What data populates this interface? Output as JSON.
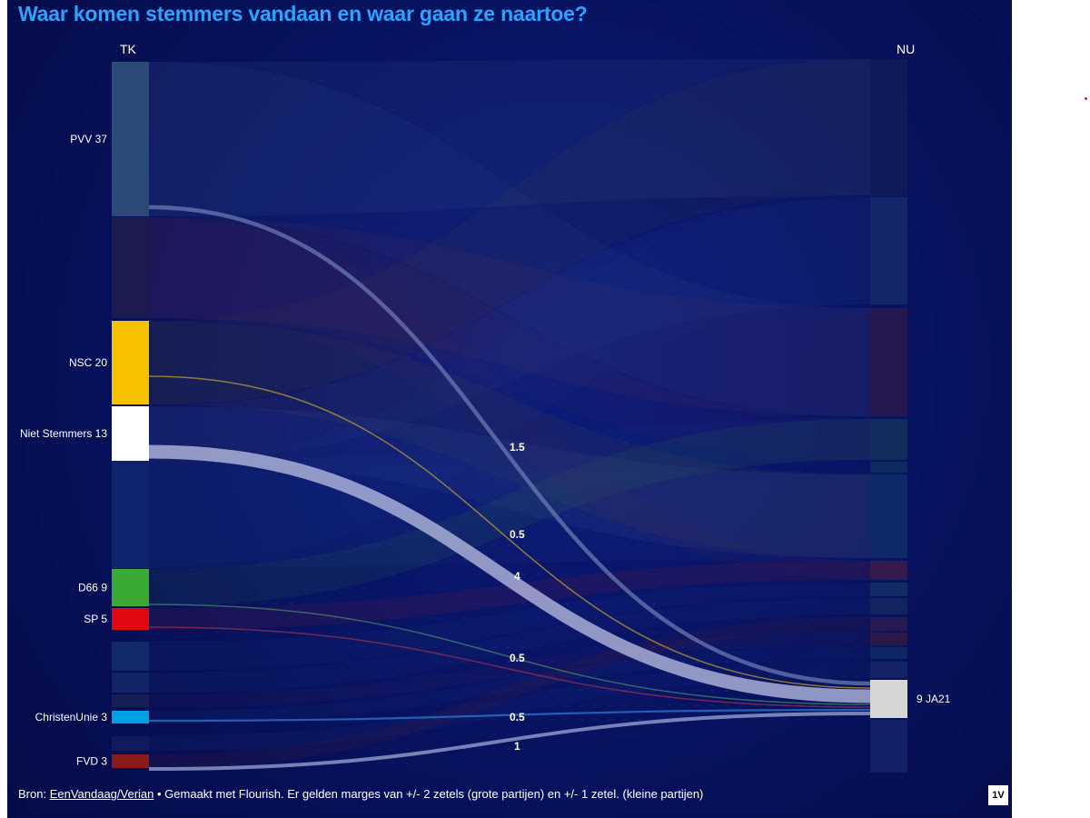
{
  "title": "Waar komen stemmers vandaan en waar gaan ze naartoe?",
  "chart_data": {
    "type": "sankey",
    "title": "Waar komen stemmers vandaan en waar gaan ze naartoe?",
    "left_header": "TK",
    "right_header": "NU",
    "sources": [
      {
        "label": "PVV 37",
        "color": "#2c4a78"
      },
      {
        "label": "",
        "color": "#1e1d4e"
      },
      {
        "label": "NSC 20",
        "color": "#f7c100"
      },
      {
        "label": "Niet Stemmers 13",
        "color": "#ffffff"
      },
      {
        "label": "",
        "color": "#10266e"
      },
      {
        "label": "D66 9",
        "color": "#3aaa35"
      },
      {
        "label": "SP 5",
        "color": "#e30613"
      },
      {
        "label": "",
        "color": "#132c6e"
      },
      {
        "label": "",
        "color": "#11286a"
      },
      {
        "label": "",
        "color": "#1a1f55"
      },
      {
        "label": "ChristenUnie 3",
        "color": "#00a0e6"
      },
      {
        "label": "",
        "color": "#101d5e"
      },
      {
        "label": "FVD 3",
        "color": "#8b1a1a"
      }
    ],
    "target": {
      "label": "9 JA21",
      "value": 9,
      "color": "#d6d6d6"
    },
    "flows_to_target": [
      {
        "from": "PVV 37",
        "value": 1.5,
        "color": "#6f7fb8"
      },
      {
        "from": "NSC 20",
        "value": 0.5,
        "color": "#c9a32c"
      },
      {
        "from": "Niet Stemmers 13",
        "value": 4,
        "color": "#b7bde0"
      },
      {
        "from": "D66 9",
        "value": 0.5,
        "color": "#4c8a6a"
      },
      {
        "from": "SP 5",
        "value": 0.5,
        "color": "#a0304e"
      },
      {
        "from": "ChristenUnie 3",
        "value": 0.5,
        "color": "#2f7fd8"
      },
      {
        "from": "FVD 3",
        "value": 1,
        "color": "#a9b2de"
      }
    ],
    "flow_labels": [
      "1.5",
      "0.5",
      "4",
      "0.5",
      "0.5",
      "1"
    ]
  },
  "footer": {
    "prefix": "Bron: ",
    "source_link": "EenVandaag/Verian",
    "text": " • Gemaakt met Flourish. Er gelden marges van +/- 2 zetels (grote partijen) en +/- 1 zetel. (kleine partijen)"
  },
  "logo": "1V",
  "colors": {
    "accent": "#2aa4ff",
    "background": "#081466"
  }
}
